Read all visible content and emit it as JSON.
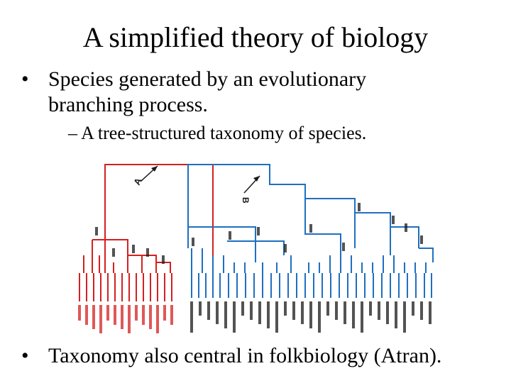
{
  "slide": {
    "title": "A simplified theory of biology",
    "bullet1_marker": "•",
    "bullet1": "Species generated by an evolutionary branching process.",
    "sub_marker": "–",
    "sub1": "A tree-structured taxonomy of species.",
    "bullet2_marker": "•",
    "bullet2": "Taxonomy also central in folkbiology (Atran)."
  },
  "figure": {
    "marker_a": "A",
    "marker_b": "B",
    "colors": {
      "red_clade": "#d42020",
      "blue_clade": "#1f6fc0",
      "text": "#1a1a1a"
    }
  }
}
